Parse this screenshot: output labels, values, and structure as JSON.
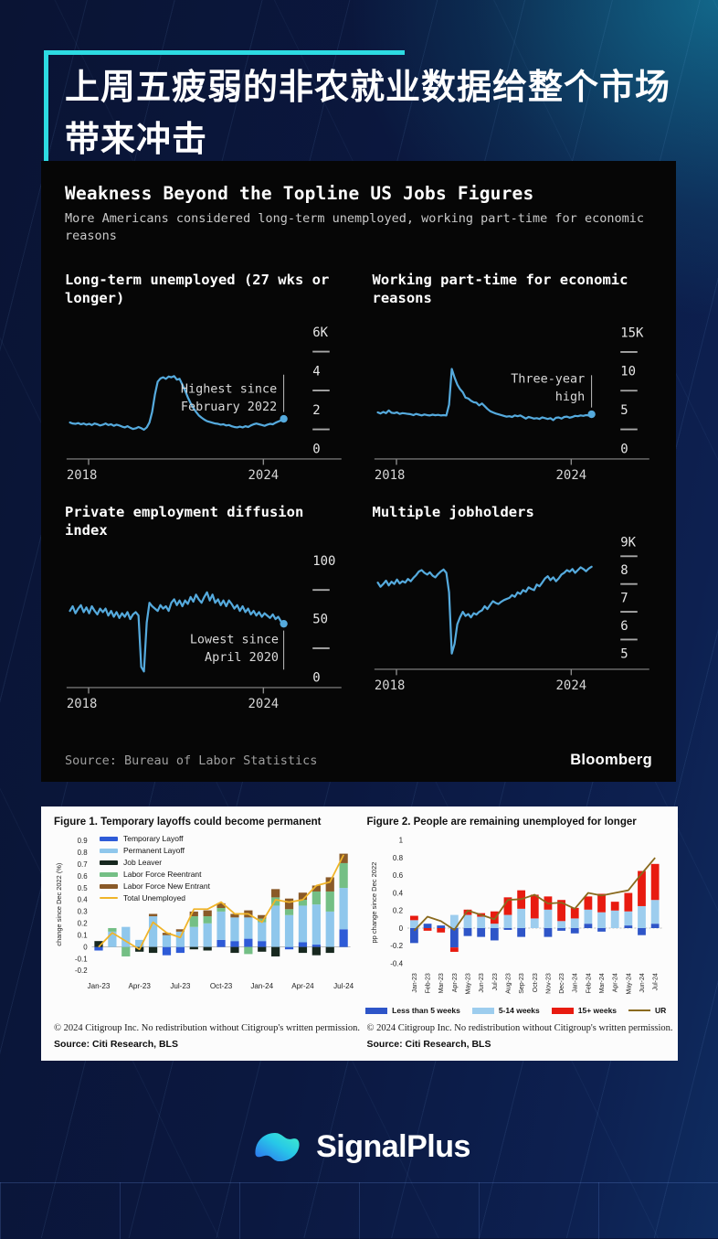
{
  "page": {
    "headline_line1": "上周五疲弱的非农就业数据给整个市场",
    "headline_line2": "带来冲击",
    "accent_color": "#2ddbe2",
    "background_color": "#0b1840"
  },
  "bloomberg_panel": {
    "title": "Weakness Beyond the Topline US Jobs Figures",
    "subtitle": "More Americans considered long-term unemployed, working part-time for economic reasons",
    "source": "Source: Bureau of Labor Statistics",
    "brand": "Bloomberg",
    "panel_color": "#060606",
    "line_color": "#55aadd"
  },
  "citi": {
    "copyright": "© 2024 Citigroup Inc. No redistribution without Citigroup's written permission.",
    "source": "Source: Citi Research, BLS"
  },
  "footer": {
    "brand": "SignalPlus"
  },
  "chart_data": [
    {
      "type": "line",
      "title": "Long-term unemployed (27 wks or longer)",
      "x_range": [
        "2018",
        "2024"
      ],
      "ylim": [
        0,
        6.3
      ],
      "yticks": [
        {
          "label": "6K",
          "v": 6
        },
        {
          "label": "4",
          "v": 4
        },
        {
          "label": "2",
          "v": 2
        },
        {
          "label": "0",
          "v": 0
        }
      ],
      "annotation_lines": [
        "Highest since",
        "February 2022"
      ],
      "color": "#55aadd",
      "values": [
        1.35,
        1.3,
        1.28,
        1.32,
        1.26,
        1.3,
        1.24,
        1.28,
        1.22,
        1.3,
        1.26,
        1.2,
        1.24,
        1.3,
        1.22,
        1.26,
        1.18,
        1.24,
        1.2,
        1.14,
        1.1,
        1.16,
        1.08,
        1.02,
        1.05,
        1.12,
        1.06,
        0.98,
        1.1,
        1.35,
        1.9,
        2.8,
        3.45,
        3.62,
        3.68,
        3.6,
        3.72,
        3.68,
        3.74,
        3.56,
        3.6,
        3.3,
        3.0,
        2.65,
        2.35,
        2.1,
        1.9,
        1.72,
        1.6,
        1.5,
        1.42,
        1.38,
        1.34,
        1.3,
        1.28,
        1.24,
        1.26,
        1.2,
        1.22,
        1.16,
        1.12,
        1.1,
        1.14,
        1.1,
        1.16,
        1.12,
        1.2,
        1.26,
        1.3,
        1.26,
        1.22,
        1.18,
        1.24,
        1.28,
        1.26,
        1.34,
        1.4,
        1.46,
        1.54
      ]
    },
    {
      "type": "line",
      "title": "Working part-time for economic reasons",
      "x_range": [
        "2018",
        "2024"
      ],
      "ylim": [
        0,
        15.8
      ],
      "yticks": [
        {
          "label": "15K",
          "v": 15
        },
        {
          "label": "10",
          "v": 10
        },
        {
          "label": "5",
          "v": 5
        },
        {
          "label": "0",
          "v": 0
        }
      ],
      "annotation_lines": [
        "Three-year",
        "high"
      ],
      "color": "#55aadd",
      "values": [
        4.7,
        4.55,
        4.75,
        4.6,
        4.95,
        4.65,
        4.6,
        4.7,
        4.5,
        4.6,
        4.55,
        4.5,
        4.45,
        4.35,
        4.5,
        4.4,
        4.3,
        4.42,
        4.35,
        4.3,
        4.4,
        4.32,
        4.38,
        4.3,
        4.35,
        4.3,
        5.7,
        10.3,
        9.2,
        8.3,
        7.7,
        7.3,
        6.6,
        6.5,
        6.2,
        6.0,
        5.95,
        5.6,
        5.85,
        5.5,
        5.15,
        4.85,
        4.7,
        4.55,
        4.45,
        4.35,
        4.25,
        4.15,
        4.2,
        4.1,
        4.3,
        4.2,
        4.3,
        4.1,
        3.9,
        4.1,
        4.0,
        3.9,
        3.95,
        3.85,
        4.05,
        3.95,
        3.85,
        3.95,
        3.7,
        4.0,
        4.05,
        3.9,
        4.1,
        4.15,
        4.0,
        4.1,
        4.25,
        4.2,
        4.3,
        4.25,
        4.35,
        4.3,
        4.45
      ]
    },
    {
      "type": "line",
      "title": "Private employment diffusion index",
      "x_range": [
        "2018",
        "2024"
      ],
      "ylim": [
        0,
        105
      ],
      "yticks": [
        {
          "label": "100",
          "v": 100
        },
        {
          "label": "50",
          "v": 50
        },
        {
          "label": "0",
          "v": 0
        }
      ],
      "annotation_lines": [
        "Lowest since",
        "April 2020"
      ],
      "color": "#55aadd",
      "values": [
        57,
        61,
        55,
        59,
        62,
        56,
        60,
        55,
        61,
        57,
        54,
        59,
        56,
        59,
        53,
        57,
        52,
        56,
        51,
        55,
        52,
        56,
        50,
        54,
        56,
        53,
        9,
        5,
        47,
        64,
        61,
        59,
        57,
        62,
        59,
        61,
        57,
        64,
        67,
        62,
        66,
        61,
        66,
        63,
        69,
        65,
        71,
        67,
        64,
        69,
        73,
        66,
        71,
        64,
        67,
        62,
        66,
        61,
        66,
        63,
        59,
        62,
        57,
        61,
        56,
        59,
        54,
        57,
        53,
        56,
        52,
        55,
        53,
        51,
        54,
        50,
        52,
        48,
        46
      ]
    },
    {
      "type": "line",
      "title": "Multiple jobholders",
      "x_range": [
        "2018",
        "2024"
      ],
      "ylim": [
        4.8,
        9.2
      ],
      "yticks": [
        {
          "label": "9K",
          "v": 9
        },
        {
          "label": "8",
          "v": 8
        },
        {
          "label": "7",
          "v": 7
        },
        {
          "label": "6",
          "v": 6
        },
        {
          "label": "5",
          "v": 5
        }
      ],
      "annotation_lines": [],
      "color": "#55aadd",
      "values": [
        7.55,
        7.4,
        7.5,
        7.62,
        7.45,
        7.58,
        7.5,
        7.66,
        7.52,
        7.6,
        7.55,
        7.68,
        7.6,
        7.72,
        7.82,
        7.95,
        8.0,
        7.9,
        7.84,
        7.92,
        7.8,
        7.74,
        7.86,
        7.95,
        8.02,
        7.9,
        7.2,
        5.0,
        5.35,
        6.05,
        6.3,
        6.5,
        6.35,
        6.42,
        6.3,
        6.45,
        6.4,
        6.5,
        6.55,
        6.7,
        6.6,
        6.75,
        6.88,
        6.82,
        6.78,
        6.86,
        6.92,
        6.96,
        7.0,
        7.1,
        7.04,
        7.2,
        7.14,
        7.28,
        7.22,
        7.38,
        7.32,
        7.28,
        7.48,
        7.42,
        7.55,
        7.7,
        7.78,
        7.64,
        7.74,
        7.6,
        7.7,
        7.84,
        7.9,
        8.0,
        7.94,
        8.04,
        7.9,
        8.0,
        8.1,
        8.04,
        7.96,
        8.06,
        8.12
      ]
    },
    {
      "type": "stacked_bar_line",
      "title": "Figure 1. Temporary layoffs could become permanent",
      "ylabel": "change since Dec 2022 (%)",
      "categories": [
        "Jan-23",
        "Feb-23",
        "Mar-23",
        "Apr-23",
        "May-23",
        "Jun-23",
        "Jul-23",
        "Aug-23",
        "Sep-23",
        "Oct-23",
        "Nov-23",
        "Dec-23",
        "Jan-24",
        "Feb-24",
        "Mar-24",
        "Apr-24",
        "May-24",
        "Jun-24",
        "Jul-24"
      ],
      "xtick_idx": [
        0,
        3,
        6,
        9,
        12,
        15,
        18
      ],
      "yticks": [
        {
          "label": "0.9",
          "v": 0.9
        },
        {
          "label": "0.8",
          "v": 0.8
        },
        {
          "label": "0.7",
          "v": 0.7
        },
        {
          "label": "0.6",
          "v": 0.6
        },
        {
          "label": "0.5",
          "v": 0.5
        },
        {
          "label": "0.4",
          "v": 0.4
        },
        {
          "label": "0.3",
          "v": 0.3
        },
        {
          "label": "0.2",
          "v": 0.2
        },
        {
          "label": "0.1",
          "v": 0.1
        },
        {
          "label": "0",
          "v": 0
        },
        {
          "label": "-0.1",
          "v": -0.1
        },
        {
          "label": "-0.2",
          "v": -0.2
        }
      ],
      "series": [
        {
          "name": "Temporary Layoff",
          "color": "#2e5bd7",
          "values": [
            -0.03,
            0,
            0,
            0,
            0,
            -0.07,
            -0.05,
            0,
            0,
            0.06,
            0.05,
            0.07,
            0.05,
            0,
            -0.02,
            0.04,
            0.02,
            0,
            0.15
          ]
        },
        {
          "name": "Permanent Layoff",
          "color": "#8fc7ec",
          "values": [
            0,
            0.13,
            0.17,
            0.06,
            0.26,
            0.1,
            0.13,
            0.17,
            0.2,
            0.24,
            0.2,
            0.18,
            0.16,
            0.35,
            0.27,
            0.31,
            0.34,
            0.3,
            0.35
          ]
        },
        {
          "name": "Job Leaver",
          "color": "#17281f",
          "values": [
            0.05,
            0,
            0,
            -0.04,
            -0.05,
            0,
            0,
            -0.02,
            -0.03,
            0,
            -0.05,
            0,
            -0.04,
            -0.08,
            0,
            -0.05,
            -0.07,
            -0.05,
            0
          ]
        },
        {
          "name": "Labor Force Reentrant",
          "color": "#74bf85",
          "values": [
            0,
            0.03,
            -0.08,
            0,
            0,
            0,
            0,
            0.09,
            0.06,
            0.03,
            0,
            -0.06,
            0.03,
            0.07,
            0.05,
            0.05,
            0.11,
            0.17,
            0.21
          ]
        },
        {
          "name": "Labor Force New Entrant",
          "color": "#8a5a28",
          "values": [
            0,
            0,
            0,
            0,
            0.02,
            0.02,
            0.02,
            0.04,
            0.05,
            0.04,
            0.03,
            0.06,
            0.03,
            0.07,
            0.09,
            0.06,
            0.05,
            0.12,
            0.08
          ]
        }
      ],
      "line": {
        "name": "Total Unemployed",
        "color": "#f0b429",
        "values": [
          0.0,
          0.12,
          0.05,
          -0.02,
          0.21,
          0.12,
          0.08,
          0.32,
          0.32,
          0.38,
          0.28,
          0.28,
          0.21,
          0.4,
          0.38,
          0.4,
          0.52,
          0.55,
          0.78
        ]
      }
    },
    {
      "type": "stacked_bar_line",
      "title": "Figure 2. People are remaining unemployed for longer",
      "ylabel": "pp change since Dec 2022",
      "categories": [
        "Jan-23",
        "Feb-23",
        "Mar-23",
        "Apr-23",
        "May-23",
        "Jun-23",
        "Jul-23",
        "Aug-23",
        "Sep-23",
        "Oct-23",
        "Nov-23",
        "Dec-23",
        "Jan-24",
        "Feb-24",
        "Mar-24",
        "Apr-24",
        "May-24",
        "Jun-24",
        "Jul-24"
      ],
      "xtick_idx": [],
      "yticks": [
        {
          "label": "1",
          "v": 1
        },
        {
          "label": "0.8",
          "v": 0.8
        },
        {
          "label": "0.6",
          "v": 0.6
        },
        {
          "label": "0.4",
          "v": 0.4
        },
        {
          "label": "0.2",
          "v": 0.2
        },
        {
          "label": "0",
          "v": 0
        },
        {
          "label": "-0.2",
          "v": -0.2
        },
        {
          "label": "-0.4",
          "v": -0.4
        }
      ],
      "series": [
        {
          "name": "Less than 5 weeks",
          "color": "#2e55c8",
          "values": [
            -0.17,
            0.05,
            0.03,
            -0.22,
            -0.09,
            -0.1,
            -0.14,
            -0.02,
            -0.1,
            0,
            -0.1,
            -0.03,
            -0.06,
            0.05,
            -0.04,
            0,
            0.03,
            -0.08,
            0.05
          ]
        },
        {
          "name": "5-14 weeks",
          "color": "#9dcdee",
          "values": [
            0.09,
            0,
            0,
            0.15,
            0.15,
            0.13,
            0.05,
            0.15,
            0.22,
            0.11,
            0.21,
            0.08,
            0.11,
            0.16,
            0.18,
            0.2,
            0.16,
            0.25,
            0.27
          ]
        },
        {
          "name": "15+ weeks",
          "color": "#e81b10",
          "values": [
            0.05,
            -0.03,
            -0.05,
            -0.05,
            0.06,
            0.04,
            0.14,
            0.2,
            0.21,
            0.27,
            0.15,
            0.24,
            0.12,
            0.15,
            0.21,
            0.1,
            0.21,
            0.4,
            0.41
          ]
        }
      ],
      "line": {
        "name": "UR",
        "color": "#8a6a1e",
        "values": [
          -0.03,
          0.13,
          0.08,
          -0.02,
          0.2,
          0.15,
          0.1,
          0.32,
          0.33,
          0.38,
          0.28,
          0.29,
          0.22,
          0.4,
          0.37,
          0.4,
          0.43,
          0.62,
          0.8
        ]
      }
    }
  ]
}
